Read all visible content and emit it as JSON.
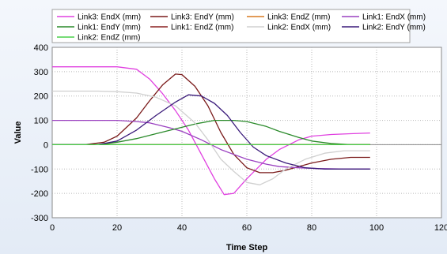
{
  "chart_data": {
    "type": "line",
    "title": "",
    "xlabel": "Time Step",
    "ylabel": "Value",
    "xlim": [
      0,
      120
    ],
    "ylim": [
      -300,
      400
    ],
    "xticks": [
      0,
      20,
      40,
      60,
      80,
      100,
      120
    ],
    "yticks": [
      -300,
      -200,
      -100,
      0,
      100,
      200,
      300,
      400
    ],
    "grid": true,
    "legend_position": "top",
    "series": [
      {
        "name": "Link3: EndX (mm)",
        "color": "#e040e0",
        "points": [
          [
            0,
            320
          ],
          [
            20,
            320
          ],
          [
            26,
            310
          ],
          [
            30,
            270
          ],
          [
            34,
            210
          ],
          [
            38,
            140
          ],
          [
            42,
            60
          ],
          [
            46,
            -40
          ],
          [
            50,
            -140
          ],
          [
            53,
            -205
          ],
          [
            56,
            -200
          ],
          [
            60,
            -140
          ],
          [
            66,
            -60
          ],
          [
            70,
            -20
          ],
          [
            76,
            20
          ],
          [
            80,
            35
          ],
          [
            86,
            42
          ],
          [
            92,
            45
          ],
          [
            98,
            48
          ]
        ]
      },
      {
        "name": "Link3: EndY (mm)",
        "color": "#7a1a1a",
        "points": [
          [
            0,
            0
          ],
          [
            10,
            0
          ],
          [
            16,
            10
          ],
          [
            20,
            35
          ],
          [
            26,
            110
          ],
          [
            30,
            180
          ],
          [
            34,
            245
          ],
          [
            38,
            290
          ],
          [
            40,
            288
          ],
          [
            44,
            240
          ],
          [
            48,
            160
          ],
          [
            52,
            50
          ],
          [
            56,
            -40
          ],
          [
            60,
            -95
          ],
          [
            64,
            -115
          ],
          [
            68,
            -115
          ],
          [
            72,
            -105
          ],
          [
            80,
            -75
          ],
          [
            86,
            -60
          ],
          [
            92,
            -52
          ],
          [
            98,
            -52
          ]
        ]
      },
      {
        "name": "Link3: EndZ (mm)",
        "color": "#d87a20",
        "points": [
          [
            0,
            0
          ],
          [
            98,
            0
          ]
        ]
      },
      {
        "name": "Link1: EndX (mm)",
        "color": "#9a40c0",
        "points": [
          [
            0,
            100
          ],
          [
            20,
            100
          ],
          [
            26,
            95
          ],
          [
            30,
            90
          ],
          [
            36,
            70
          ],
          [
            40,
            55
          ],
          [
            46,
            20
          ],
          [
            52,
            -20
          ],
          [
            56,
            -40
          ],
          [
            60,
            -60
          ],
          [
            66,
            -80
          ],
          [
            70,
            -90
          ],
          [
            76,
            -95
          ],
          [
            82,
            -98
          ],
          [
            90,
            -100
          ],
          [
            98,
            -100
          ]
        ]
      },
      {
        "name": "Link1: EndY (mm)",
        "color": "#2a8a2a",
        "points": [
          [
            0,
            0
          ],
          [
            14,
            0
          ],
          [
            20,
            10
          ],
          [
            26,
            25
          ],
          [
            32,
            45
          ],
          [
            38,
            65
          ],
          [
            44,
            85
          ],
          [
            50,
            100
          ],
          [
            56,
            100
          ],
          [
            60,
            95
          ],
          [
            66,
            75
          ],
          [
            70,
            55
          ],
          [
            76,
            30
          ],
          [
            80,
            15
          ],
          [
            86,
            5
          ],
          [
            92,
            0
          ],
          [
            98,
            0
          ]
        ]
      },
      {
        "name": "Link1: EndZ (mm)",
        "color": "#8a2020",
        "points": [
          [
            0,
            0
          ],
          [
            98,
            0
          ]
        ]
      },
      {
        "name": "Link2: EndX (mm)",
        "color": "#d0d0d0",
        "points": [
          [
            0,
            220
          ],
          [
            14,
            220
          ],
          [
            20,
            218
          ],
          [
            26,
            212
          ],
          [
            32,
            195
          ],
          [
            38,
            160
          ],
          [
            44,
            90
          ],
          [
            48,
            20
          ],
          [
            52,
            -60
          ],
          [
            56,
            -110
          ],
          [
            60,
            -155
          ],
          [
            64,
            -165
          ],
          [
            68,
            -140
          ],
          [
            72,
            -100
          ],
          [
            78,
            -60
          ],
          [
            84,
            -35
          ],
          [
            90,
            -25
          ],
          [
            98,
            -25
          ]
        ]
      },
      {
        "name": "Link2: EndY (mm)",
        "color": "#3a1a7a",
        "points": [
          [
            0,
            0
          ],
          [
            14,
            0
          ],
          [
            20,
            15
          ],
          [
            26,
            60
          ],
          [
            32,
            120
          ],
          [
            38,
            175
          ],
          [
            42,
            205
          ],
          [
            46,
            200
          ],
          [
            50,
            170
          ],
          [
            54,
            120
          ],
          [
            58,
            50
          ],
          [
            62,
            -10
          ],
          [
            66,
            -45
          ],
          [
            72,
            -75
          ],
          [
            78,
            -95
          ],
          [
            84,
            -100
          ],
          [
            90,
            -100
          ],
          [
            98,
            -100
          ]
        ]
      },
      {
        "name": "Link2: EndZ (mm)",
        "color": "#4ad04a",
        "points": [
          [
            0,
            0
          ],
          [
            98,
            0
          ]
        ]
      }
    ]
  }
}
